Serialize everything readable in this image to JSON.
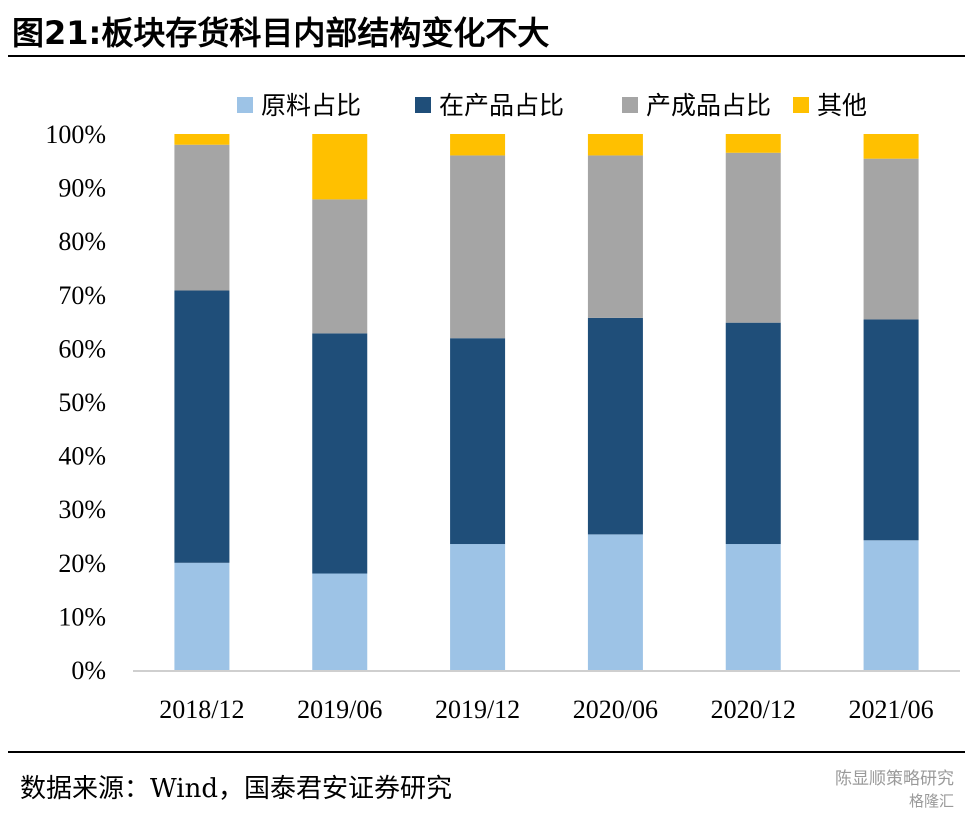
{
  "title": "图21:板块存货科目内部结构变化不大",
  "source": "数据来源：Wind，国泰君安证券研究",
  "watermark": {
    "line1": "陈显顺策略研究",
    "line2": "格隆汇"
  },
  "chart_data": {
    "type": "bar",
    "stacked": true,
    "title": "",
    "xlabel": "",
    "ylabel": "",
    "ylim": [
      0,
      100
    ],
    "y_ticks": [
      "0%",
      "10%",
      "20%",
      "30%",
      "40%",
      "50%",
      "60%",
      "70%",
      "80%",
      "90%",
      "100%"
    ],
    "categories": [
      "2018/12",
      "2019/06",
      "2019/12",
      "2020/06",
      "2020/12",
      "2021/06"
    ],
    "legend_position": "top",
    "grid": false,
    "series": [
      {
        "name": "原料占比",
        "color": "#9dc3e6",
        "values": [
          20.0,
          18.0,
          23.5,
          25.3,
          23.5,
          24.2
        ]
      },
      {
        "name": "在产品占比",
        "color": "#1f4e79",
        "values": [
          50.8,
          44.8,
          38.4,
          40.4,
          41.3,
          41.2
        ]
      },
      {
        "name": "产成品占比",
        "color": "#a5a5a5",
        "values": [
          27.2,
          25.0,
          34.1,
          30.3,
          31.7,
          30.0
        ]
      },
      {
        "name": "其他",
        "color": "#ffc000",
        "values": [
          2.0,
          12.2,
          4.0,
          4.0,
          3.5,
          4.6
        ]
      }
    ]
  }
}
